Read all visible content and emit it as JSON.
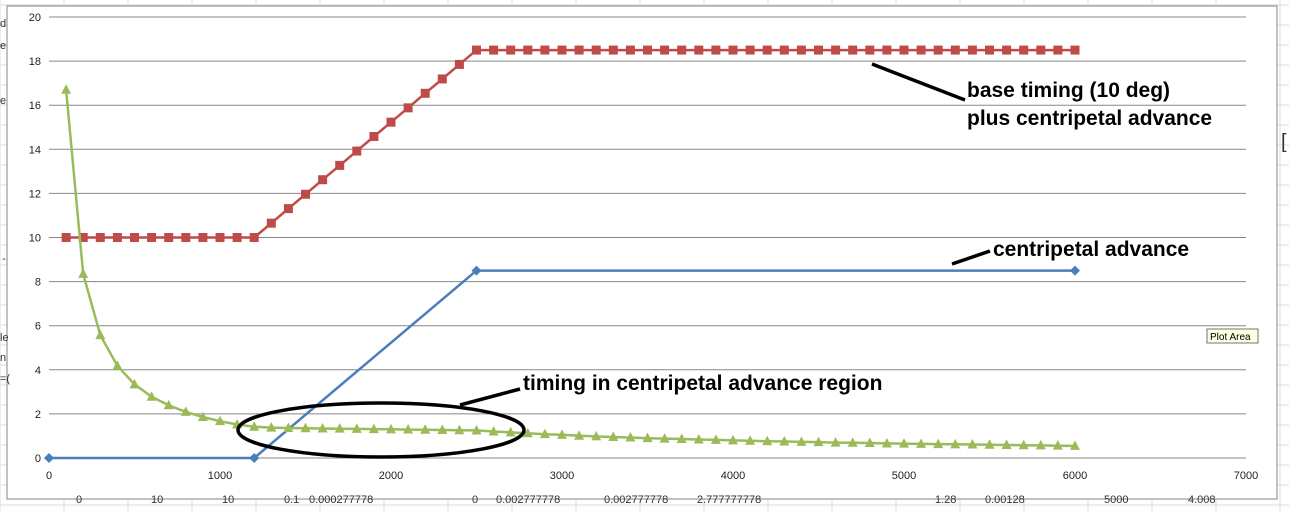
{
  "chart_data": {
    "type": "line",
    "xlim": [
      0,
      7000
    ],
    "ylim": [
      0,
      20
    ],
    "x_ticks": [
      "0",
      "1000",
      "2000",
      "3000",
      "4000",
      "5000",
      "6000",
      "7000"
    ],
    "y_ticks": [
      "0",
      "2",
      "4",
      "6",
      "8",
      "10",
      "12",
      "14",
      "16",
      "18",
      "20"
    ],
    "grid": "horizontal",
    "legend": "none",
    "series": [
      {
        "key": "centripetal",
        "color": "#4a7ebb",
        "marker": "diamond",
        "x": [
          0,
          1200,
          2500,
          6000
        ],
        "y": [
          0,
          0,
          8.5,
          8.5
        ]
      },
      {
        "key": "base_plus",
        "color": "#be4b48",
        "marker": "square",
        "x": [
          100,
          200,
          300,
          400,
          500,
          600,
          700,
          800,
          900,
          1000,
          1100,
          1200,
          1300,
          1400,
          1500,
          1600,
          1700,
          1800,
          1900,
          2000,
          2100,
          2200,
          2300,
          2400,
          2500,
          2600,
          2700,
          2800,
          2900,
          3000,
          3100,
          3200,
          3300,
          3400,
          3500,
          3600,
          3700,
          3800,
          3900,
          4000,
          4100,
          4200,
          4300,
          4400,
          4500,
          4600,
          4700,
          4800,
          4900,
          5000,
          5100,
          5200,
          5300,
          5400,
          5500,
          5600,
          5700,
          5800,
          5900,
          6000
        ],
        "y": [
          10,
          10,
          10,
          10,
          10,
          10,
          10,
          10,
          10,
          10,
          10,
          10,
          10.65,
          11.31,
          11.96,
          12.62,
          13.27,
          13.92,
          14.58,
          15.23,
          15.88,
          16.54,
          17.19,
          17.85,
          18.5,
          18.5,
          18.5,
          18.5,
          18.5,
          18.5,
          18.5,
          18.5,
          18.5,
          18.5,
          18.5,
          18.5,
          18.5,
          18.5,
          18.5,
          18.5,
          18.5,
          18.5,
          18.5,
          18.5,
          18.5,
          18.5,
          18.5,
          18.5,
          18.5,
          18.5,
          18.5,
          18.5,
          18.5,
          18.5,
          18.5,
          18.5,
          18.5,
          18.5,
          18.5,
          18.5
        ]
      },
      {
        "key": "timing",
        "color": "#9bbb59",
        "marker": "triangle",
        "x": [
          100,
          200,
          300,
          400,
          500,
          600,
          700,
          800,
          900,
          1000,
          1100,
          1200,
          1300,
          1400,
          1500,
          1600,
          1700,
          1800,
          1900,
          2000,
          2100,
          2200,
          2300,
          2400,
          2500,
          2600,
          2700,
          2800,
          2900,
          3000,
          3100,
          3200,
          3300,
          3400,
          3500,
          3600,
          3700,
          3800,
          3900,
          4000,
          4100,
          4200,
          4300,
          4400,
          4500,
          4600,
          4700,
          4800,
          4900,
          5000,
          5100,
          5200,
          5300,
          5400,
          5500,
          5600,
          5700,
          5800,
          5900,
          6000
        ],
        "y": [
          16.7,
          8.35,
          5.57,
          4.18,
          3.34,
          2.78,
          2.39,
          2.09,
          1.86,
          1.67,
          1.52,
          1.42,
          1.38,
          1.36,
          1.35,
          1.34,
          1.33,
          1.32,
          1.31,
          1.3,
          1.29,
          1.28,
          1.27,
          1.26,
          1.25,
          1.2,
          1.16,
          1.12,
          1.08,
          1.05,
          1.01,
          0.98,
          0.95,
          0.93,
          0.9,
          0.88,
          0.86,
          0.84,
          0.82,
          0.8,
          0.78,
          0.76,
          0.75,
          0.73,
          0.72,
          0.7,
          0.69,
          0.68,
          0.66,
          0.65,
          0.64,
          0.63,
          0.62,
          0.61,
          0.6,
          0.59,
          0.58,
          0.57,
          0.56,
          0.55
        ]
      }
    ],
    "annotations": [
      {
        "key": "base_label_line1",
        "text": "base timing (10 deg)"
      },
      {
        "key": "base_label_line2",
        "text": "plus centripetal advance"
      },
      {
        "key": "centripetal_label",
        "text": "centripetal advance"
      },
      {
        "key": "timing_label",
        "text": "timing in centripetal advance region"
      }
    ]
  },
  "spreadsheet_row": [
    "0",
    "10",
    "10",
    "0.1",
    "0.000277778",
    "0",
    "0.002777778",
    "0.002777778",
    "2.777777778",
    "1.28",
    "0.00128",
    "5000",
    "4.008"
  ],
  "left_edge_fragments": [
    "d",
    "e",
    "e",
    "-",
    "le",
    "n",
    "=("
  ],
  "right_edge_fragment": "[",
  "tooltip": "Plot Area"
}
